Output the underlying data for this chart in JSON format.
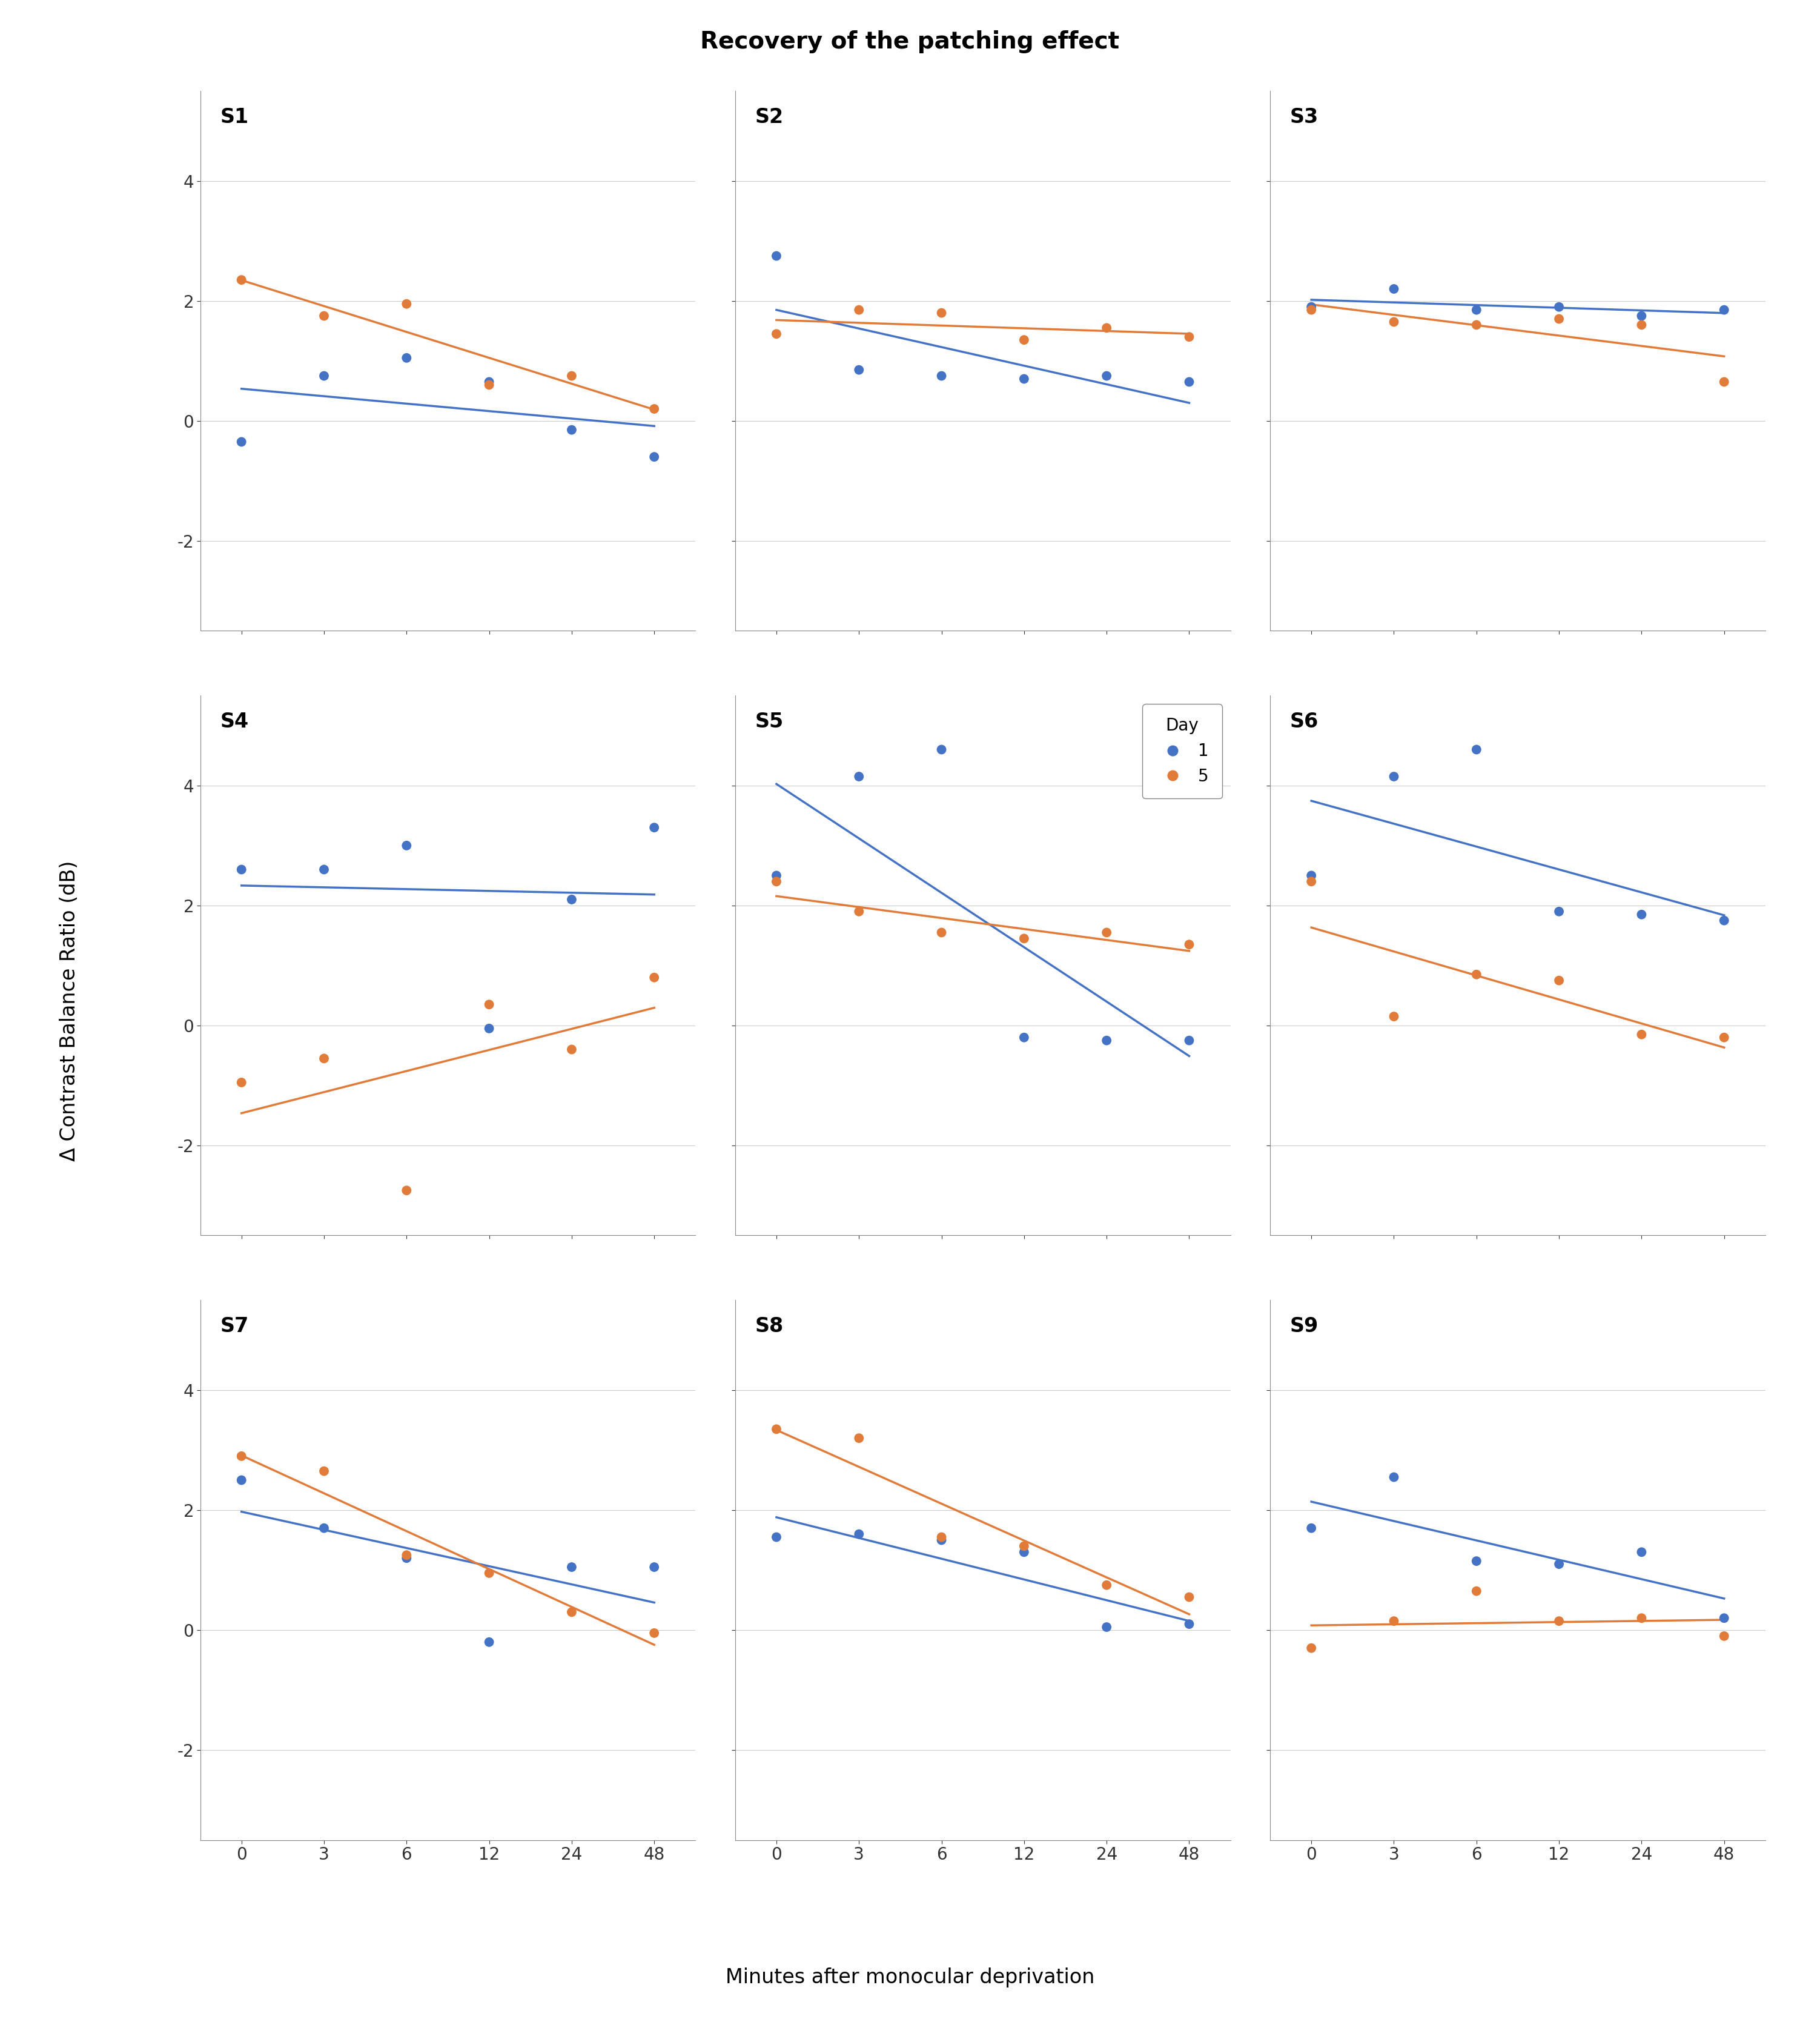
{
  "title": "Recovery of the patching effect",
  "xlabel": "Minutes after monocular deprivation",
  "ylabel": "Δ Contrast Balance Ratio (dB)",
  "x_ticks": [
    0,
    3,
    6,
    12,
    24,
    48
  ],
  "ylim": [
    -3.5,
    5.5
  ],
  "yticks": [
    -2,
    0,
    2,
    4
  ],
  "color_day1": "#4472C4",
  "color_day5": "#E07B39",
  "subjects": [
    "S1",
    "S2",
    "S3",
    "S4",
    "S5",
    "S6",
    "S7",
    "S8",
    "S9"
  ],
  "data": {
    "S1": {
      "day1_x": [
        0,
        3,
        6,
        12,
        24,
        48
      ],
      "day1_y": [
        -0.35,
        0.75,
        1.05,
        0.65,
        -0.15,
        -0.6
      ],
      "day5_x": [
        0,
        3,
        6,
        12,
        24,
        48
      ],
      "day5_y": [
        2.35,
        1.75,
        1.95,
        0.6,
        0.75,
        0.2
      ]
    },
    "S2": {
      "day1_x": [
        0,
        3,
        6,
        12,
        24,
        48
      ],
      "day1_y": [
        2.75,
        0.85,
        0.75,
        0.7,
        0.75,
        0.65
      ],
      "day5_x": [
        0,
        3,
        6,
        12,
        24,
        48
      ],
      "day5_y": [
        1.45,
        1.85,
        1.8,
        1.35,
        1.55,
        1.4
      ]
    },
    "S3": {
      "day1_x": [
        0,
        3,
        6,
        12,
        24,
        48
      ],
      "day1_y": [
        1.9,
        2.2,
        1.85,
        1.9,
        1.75,
        1.85
      ],
      "day5_x": [
        0,
        3,
        6,
        12,
        24,
        48
      ],
      "day5_y": [
        1.85,
        1.65,
        1.6,
        1.7,
        1.6,
        0.65
      ]
    },
    "S4": {
      "day1_x": [
        0,
        3,
        6,
        12,
        24,
        48
      ],
      "day1_y": [
        2.6,
        2.6,
        3.0,
        -0.05,
        2.1,
        3.3
      ],
      "day5_x": [
        0,
        3,
        6,
        12,
        24,
        48
      ],
      "day5_y": [
        -0.95,
        -0.55,
        -2.75,
        0.35,
        -0.4,
        0.8
      ]
    },
    "S5": {
      "day1_x": [
        0,
        3,
        6,
        12,
        24,
        48
      ],
      "day1_y": [
        2.5,
        4.15,
        4.6,
        -0.2,
        -0.25,
        -0.25
      ],
      "day5_x": [
        0,
        3,
        6,
        12,
        24,
        48
      ],
      "day5_y": [
        2.4,
        1.9,
        1.55,
        1.45,
        1.55,
        1.35
      ]
    },
    "S6": {
      "day1_x": [
        0,
        3,
        6,
        12,
        24,
        48
      ],
      "day1_y": [
        2.5,
        4.15,
        4.6,
        1.9,
        1.85,
        1.75
      ],
      "day5_x": [
        0,
        3,
        6,
        12,
        24,
        48
      ],
      "day5_y": [
        2.4,
        0.15,
        0.85,
        0.75,
        -0.15,
        -0.2
      ]
    },
    "S7": {
      "day1_x": [
        0,
        3,
        6,
        12,
        24,
        48
      ],
      "day1_y": [
        2.5,
        1.7,
        1.2,
        -0.2,
        1.05,
        1.05
      ],
      "day5_x": [
        0,
        3,
        6,
        12,
        24,
        48
      ],
      "day5_y": [
        2.9,
        2.65,
        1.25,
        0.95,
        0.3,
        -0.05
      ]
    },
    "S8": {
      "day1_x": [
        0,
        3,
        6,
        12,
        24,
        48
      ],
      "day1_y": [
        1.55,
        1.6,
        1.5,
        1.3,
        0.05,
        0.1
      ],
      "day5_x": [
        0,
        3,
        6,
        12,
        24,
        48
      ],
      "day5_y": [
        3.35,
        3.2,
        1.55,
        1.4,
        0.75,
        0.55
      ]
    },
    "S9": {
      "day1_x": [
        0,
        3,
        6,
        12,
        24,
        48
      ],
      "day1_y": [
        1.7,
        2.55,
        1.15,
        1.1,
        1.3,
        0.2
      ],
      "day5_x": [
        0,
        3,
        6,
        12,
        24,
        48
      ],
      "day5_y": [
        -0.3,
        0.15,
        0.65,
        0.15,
        0.2,
        -0.1
      ]
    }
  },
  "marker_size": 130,
  "line_width": 2.5,
  "background_color": "#ffffff",
  "grid_color": "#cccccc",
  "title_fontsize": 28,
  "label_fontsize": 24,
  "tick_fontsize": 20,
  "subject_fontsize": 24,
  "legend_fontsize": 20
}
